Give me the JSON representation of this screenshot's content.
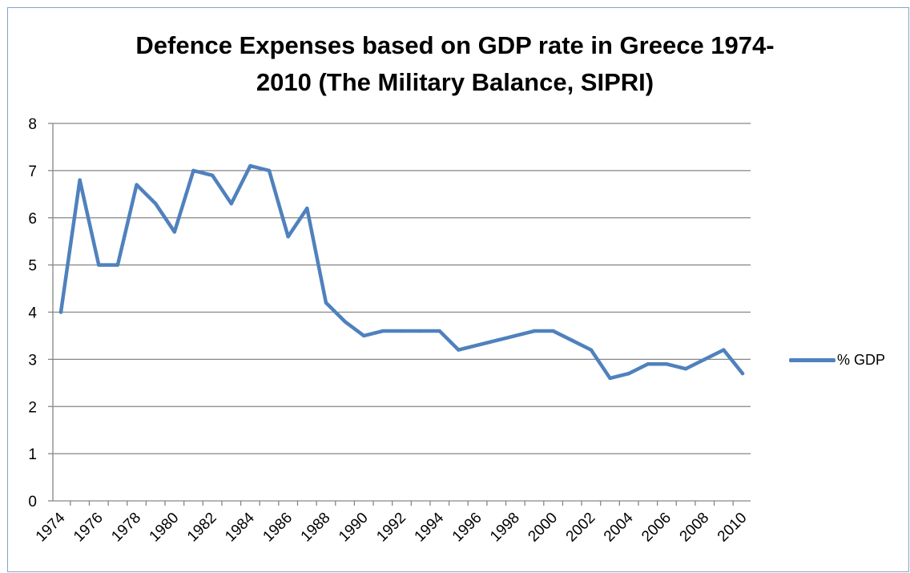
{
  "chart_data": {
    "type": "line",
    "title_lines": [
      "Defence Expenses based on GDP rate in Greece 1974-",
      "2010 (The Military Balance, SIPRI)"
    ],
    "xlabel": "",
    "ylabel": "",
    "ylim": [
      0,
      8
    ],
    "yticks": [
      "0",
      "1",
      "2",
      "3",
      "4",
      "5",
      "6",
      "7",
      "8"
    ],
    "grid": true,
    "legend_position": "right",
    "x": [
      1974,
      1975,
      1976,
      1977,
      1978,
      1979,
      1980,
      1981,
      1982,
      1983,
      1984,
      1985,
      1986,
      1987,
      1988,
      1989,
      1990,
      1991,
      1992,
      1993,
      1994,
      1995,
      1996,
      1997,
      1998,
      1999,
      2000,
      2001,
      2002,
      2003,
      2004,
      2005,
      2006,
      2007,
      2008,
      2009,
      2010
    ],
    "xtick_labels": [
      "1974",
      "1976",
      "1978",
      "1980",
      "1982",
      "1984",
      "1986",
      "1988",
      "1990",
      "1992",
      "1994",
      "1996",
      "1998",
      "2000",
      "2002",
      "2004",
      "2006",
      "2008",
      "2010"
    ],
    "series": [
      {
        "name": "% GDP",
        "color": "#4f81bd",
        "values": [
          4.0,
          6.8,
          5.0,
          5.0,
          6.7,
          6.3,
          5.7,
          7.0,
          6.9,
          6.3,
          7.1,
          7.0,
          5.6,
          6.2,
          4.2,
          3.8,
          3.5,
          3.6,
          3.6,
          3.6,
          3.6,
          3.2,
          3.3,
          3.4,
          3.5,
          3.6,
          3.6,
          3.4,
          3.2,
          2.6,
          2.7,
          2.9,
          2.9,
          2.8,
          3.0,
          3.2,
          2.7
        ]
      }
    ]
  }
}
